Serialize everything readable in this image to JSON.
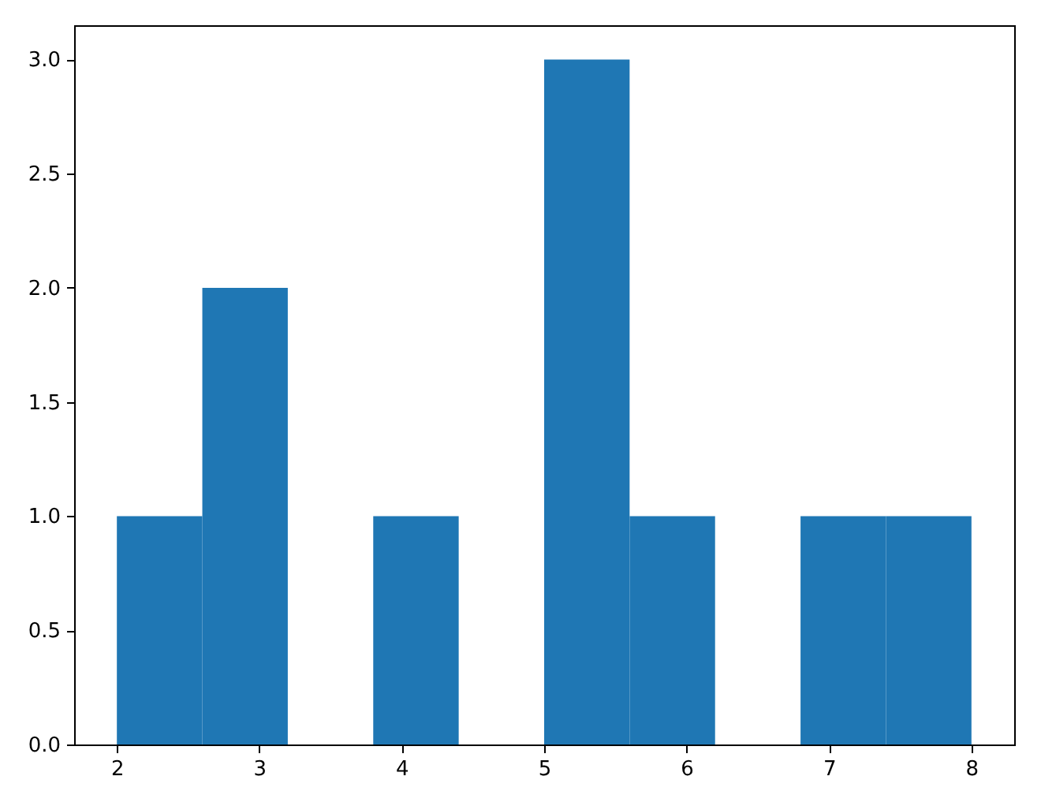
{
  "chart_data": {
    "type": "histogram",
    "bins": [
      2,
      2.6,
      3.2,
      3.8,
      4.4,
      5,
      5.6,
      6.2,
      6.8,
      7.4,
      8
    ],
    "values": [
      1,
      2,
      0,
      1,
      0,
      3,
      1,
      0,
      1,
      1
    ],
    "color": "#1f77b4",
    "xlim": [
      1.7,
      8.3
    ],
    "ylim": [
      0,
      3.15
    ],
    "xticks": [
      2,
      3,
      4,
      5,
      6,
      7,
      8
    ],
    "yticks": [
      {
        "value": 0,
        "label": "0.0"
      },
      {
        "value": 0.5,
        "label": "0.5"
      },
      {
        "value": 1,
        "label": "1.0"
      },
      {
        "value": 1.5,
        "label": "1.5"
      },
      {
        "value": 2,
        "label": "2.0"
      },
      {
        "value": 2.5,
        "label": "2.5"
      },
      {
        "value": 3,
        "label": "3.0"
      }
    ],
    "grid": false
  }
}
